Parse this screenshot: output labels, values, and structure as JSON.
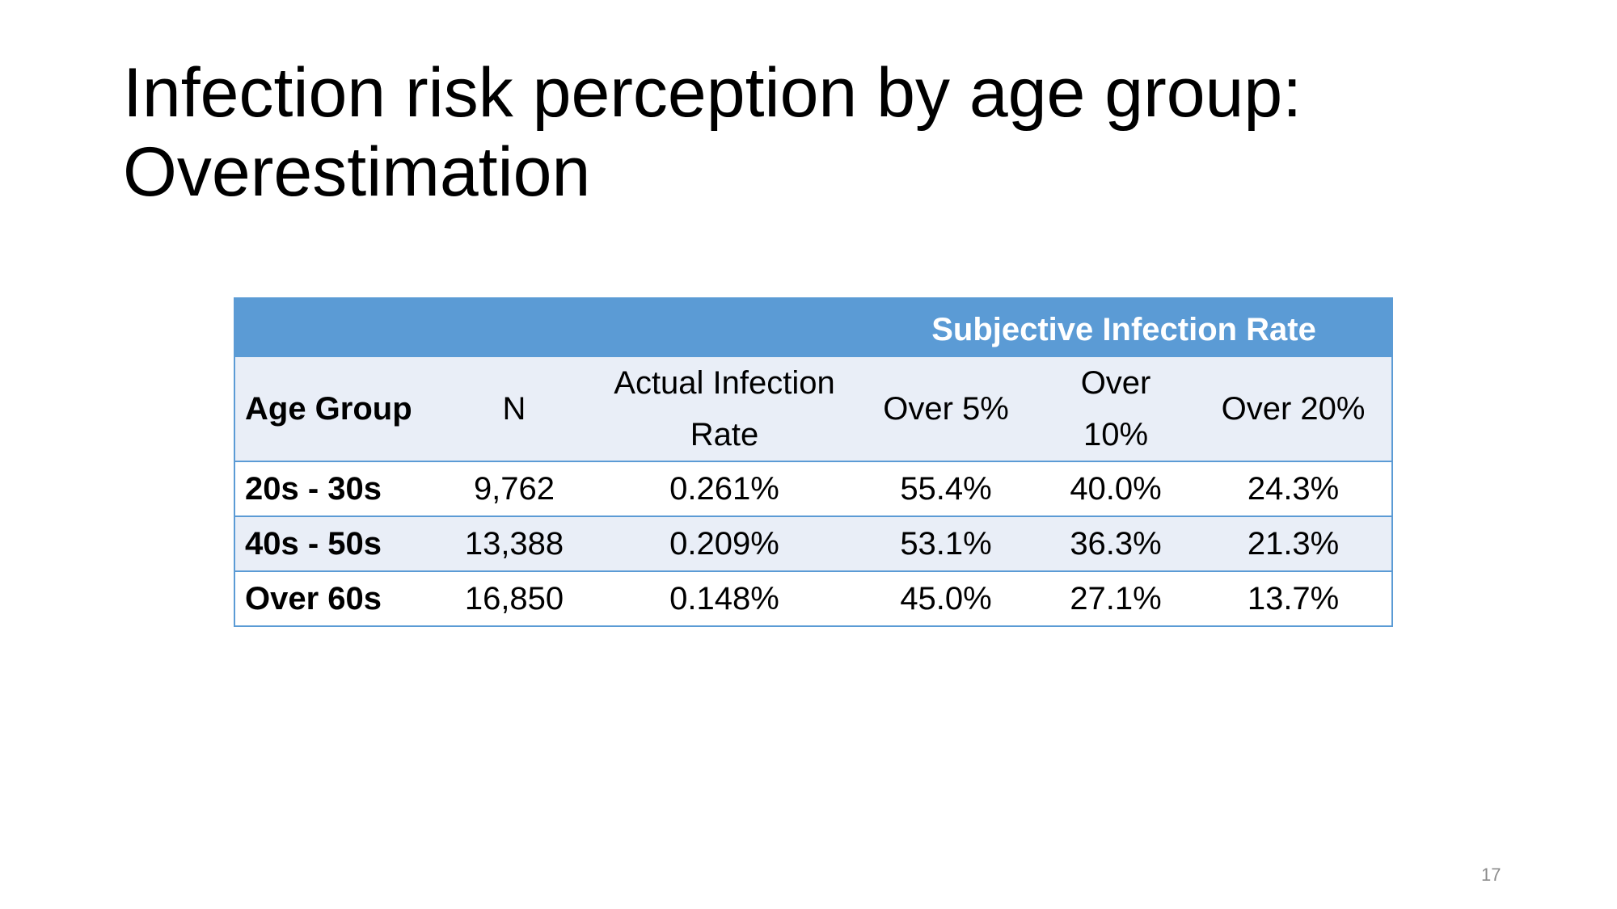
{
  "title": {
    "line1": "Infection risk perception by age group:",
    "line2": "Overestimation"
  },
  "table": {
    "super_header": "Subjective Infection Rate",
    "headers": {
      "age_group": "Age Group",
      "n": "N",
      "actual_line1": "Actual Infection",
      "actual_line2": "Rate",
      "over5": "Over 5%",
      "over10": "Over 10%",
      "over20": "Over 20%"
    },
    "rows": [
      {
        "age_group": "20s - 30s",
        "n": "9,762",
        "actual": "0.261%",
        "over5": "55.4%",
        "over10": "40.0%",
        "over20": "24.3%"
      },
      {
        "age_group": "40s - 50s",
        "n": "13,388",
        "actual": "0.209%",
        "over5": "53.1%",
        "over10": "36.3%",
        "over20": "21.3%"
      },
      {
        "age_group": "Over 60s",
        "n": "16,850",
        "actual": "0.148%",
        "over5": "45.0%",
        "over10": "27.1%",
        "over20": "13.7%"
      }
    ],
    "colors": {
      "header_band": "#5b9bd5",
      "shade_row": "#e9eef7",
      "border": "#5b9bd5"
    }
  },
  "page_number": "17"
}
